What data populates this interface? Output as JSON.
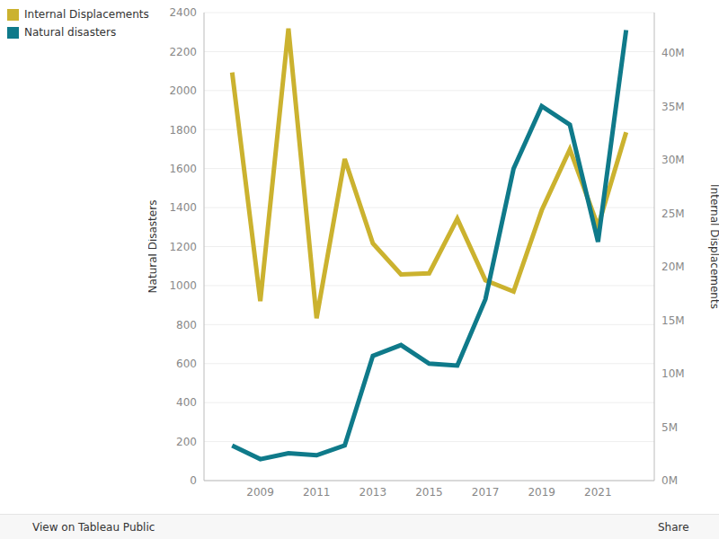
{
  "chart_data": {
    "type": "line",
    "x": [
      2008,
      2009,
      2010,
      2011,
      2012,
      2013,
      2014,
      2015,
      2016,
      2017,
      2018,
      2019,
      2020,
      2021,
      2022
    ],
    "xlim": [
      2007,
      2023
    ],
    "xticks": [
      2009,
      2011,
      2013,
      2015,
      2017,
      2019,
      2021
    ],
    "ylabel": "Natural Disasters",
    "ylim": [
      0,
      2400
    ],
    "yticks": [
      0,
      200,
      400,
      600,
      800,
      1000,
      1200,
      1400,
      1600,
      1800,
      2000,
      2200,
      2400
    ],
    "y2label": "Internal Displacements",
    "y2lim": [
      0,
      43800000
    ],
    "y2ticks": [
      {
        "value": 0,
        "label": "0M"
      },
      {
        "value": 5000000,
        "label": "5M"
      },
      {
        "value": 10000000,
        "label": "10M"
      },
      {
        "value": 15000000,
        "label": "15M"
      },
      {
        "value": 20000000,
        "label": "20M"
      },
      {
        "value": 25000000,
        "label": "25M"
      },
      {
        "value": 30000000,
        "label": "30M"
      },
      {
        "value": 35000000,
        "label": "35M"
      },
      {
        "value": 40000000,
        "label": "40M"
      }
    ],
    "grid": true,
    "legend": "top-left",
    "series": [
      {
        "name": "Internal Displacements",
        "color": "#cbb22f",
        "axis": "y2",
        "values": [
          38200000,
          16800000,
          42300000,
          15200000,
          30100000,
          22200000,
          19300000,
          19400000,
          24500000,
          18750000,
          17700000,
          25300000,
          31000000,
          23800000,
          32600000
        ]
      },
      {
        "name": "Natural disasters",
        "color": "#0f7a8a",
        "values": [
          180,
          110,
          140,
          130,
          180,
          640,
          695,
          600,
          590,
          930,
          1600,
          1920,
          1825,
          1225,
          2310
        ]
      }
    ]
  },
  "toolbar": {
    "link": "View on Tableau Public",
    "share": "Share"
  }
}
